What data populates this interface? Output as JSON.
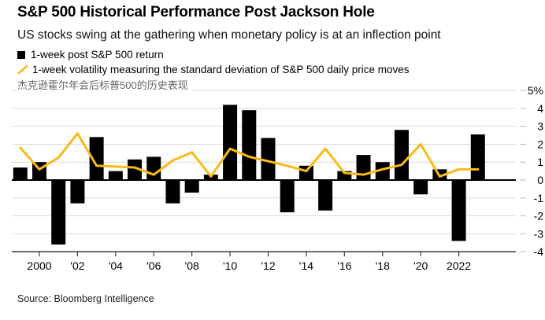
{
  "header": {
    "title": "S&P 500 Historical Performance Post Jackson Hole",
    "subtitle": "US stocks swing at the gathering when monetary policy is at an inflection point",
    "caption_cn": "杰克逊霍尔年会后标普500的历史表现"
  },
  "legend": [
    {
      "label": "1-week post S&P 500 return",
      "marker": "black-square",
      "color": "#000000"
    },
    {
      "label": "1-week volatility measuring the standard deviation of S&P 500 daily price moves",
      "marker": "yellow-slash",
      "color": "#FABA18"
    }
  ],
  "source": "Source: Bloomberg Intelligence",
  "colors": {
    "bar": "#000000",
    "line": "#FABA18",
    "grid": "#d9d9d9",
    "zero_line": "#000000",
    "axis": "#3a3a3a",
    "caption": "#666666"
  },
  "chart_data": {
    "type": "bar",
    "title": "S&P 500 Historical Performance Post Jackson Hole",
    "x": [
      1999,
      2000,
      2001,
      2002,
      2003,
      2004,
      2005,
      2006,
      2007,
      2008,
      2009,
      2010,
      2011,
      2012,
      2013,
      2014,
      2015,
      2016,
      2017,
      2018,
      2019,
      2020,
      2021,
      2022,
      2023
    ],
    "series": [
      {
        "name": "1-week post S&P 500 return",
        "type": "bar",
        "color": "#000000",
        "values": [
          0.7,
          1.0,
          -3.6,
          -1.3,
          2.4,
          0.5,
          1.15,
          1.3,
          -1.3,
          -0.7,
          0.3,
          4.2,
          3.9,
          2.35,
          -1.8,
          0.8,
          -1.7,
          0.5,
          1.4,
          1.0,
          2.8,
          -0.8,
          0.6,
          -3.4,
          2.55
        ]
      },
      {
        "name": "1-week volatility measuring the standard deviation of S&P 500 daily price moves",
        "type": "line",
        "color": "#FABA18",
        "values": [
          1.8,
          0.6,
          1.25,
          2.6,
          0.8,
          0.75,
          0.7,
          0.3,
          1.1,
          1.55,
          0.2,
          1.75,
          1.3,
          1.05,
          0.8,
          0.5,
          1.75,
          0.4,
          0.3,
          0.6,
          0.85,
          2.0,
          0.2,
          0.6,
          0.6
        ]
      }
    ],
    "xlabel": "",
    "ylabel": "%",
    "ylim": [
      -4,
      5
    ],
    "grid": true,
    "legend_position": "top-left",
    "y_ticks": [
      {
        "value": 5,
        "label": "5%"
      },
      {
        "value": 4,
        "label": "4"
      },
      {
        "value": 3,
        "label": "3"
      },
      {
        "value": 2,
        "label": "2"
      },
      {
        "value": 1,
        "label": "1"
      },
      {
        "value": 0,
        "label": "0"
      },
      {
        "value": -1,
        "label": "-1"
      },
      {
        "value": -2,
        "label": "-2"
      },
      {
        "value": -3,
        "label": "-3"
      },
      {
        "value": -4,
        "label": "-4"
      }
    ],
    "x_ticks": [
      {
        "value": 2000,
        "label": "2000"
      },
      {
        "value": 2002,
        "label": "'02"
      },
      {
        "value": 2004,
        "label": "'04"
      },
      {
        "value": 2006,
        "label": "'06"
      },
      {
        "value": 2008,
        "label": "'08"
      },
      {
        "value": 2010,
        "label": "'10"
      },
      {
        "value": 2012,
        "label": "'12"
      },
      {
        "value": 2014,
        "label": "'14"
      },
      {
        "value": 2016,
        "label": "'16"
      },
      {
        "value": 2018,
        "label": "'18"
      },
      {
        "value": 2020,
        "label": "'20"
      },
      {
        "value": 2022,
        "label": "2022"
      }
    ]
  }
}
